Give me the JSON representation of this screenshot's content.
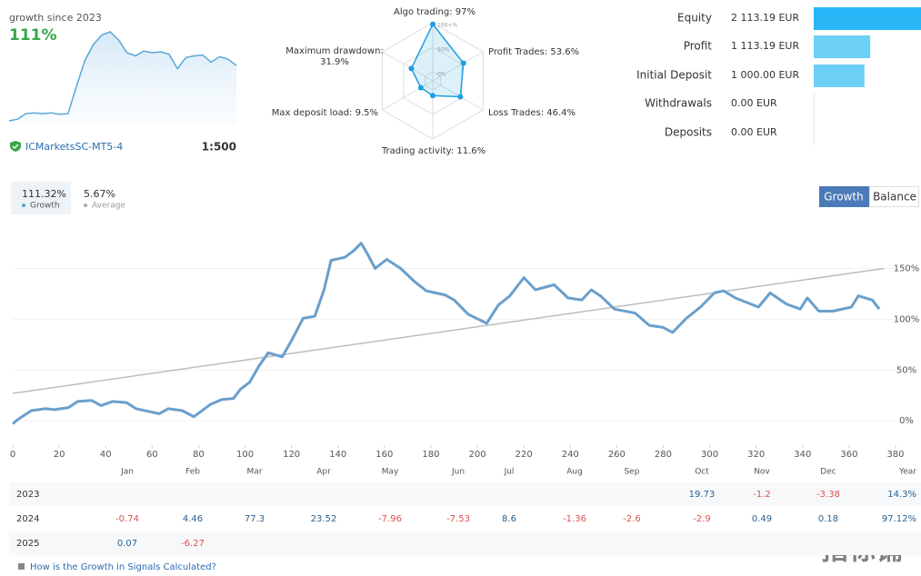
{
  "header": {
    "title": "growth since 2023",
    "growth": "111%",
    "server": "ICMarketsSC-MT5-4",
    "leverage": "1:500"
  },
  "chart_data": [
    {
      "type": "sparkline",
      "color": "#5aa7d6",
      "values": [
        -3,
        -1,
        6,
        7,
        6,
        7,
        5,
        6,
        40,
        72,
        92,
        104,
        108,
        98,
        82,
        78,
        84,
        82,
        83,
        80,
        62,
        76,
        78,
        79,
        70,
        77,
        74,
        66
      ]
    },
    {
      "type": "radar",
      "color": "#1e9fe0",
      "categories": [
        "Algo trading: 97%",
        "Profit Trades: 53.6%",
        "Loss Trades: 46.4%",
        "Trading activity: 11.6%",
        "Max deposit load: 9.5%",
        "Maximum drawdown: 31.9%"
      ],
      "values": [
        97,
        53.6,
        46.4,
        11.6,
        9.5,
        31.9
      ],
      "yticks": [
        {
          "value": 0,
          "label": "0%"
        },
        {
          "value": 50,
          "label": "50%"
        },
        {
          "value": 100,
          "label": "100+%"
        }
      ]
    },
    {
      "type": "hbar",
      "categories": [
        "Equity",
        "Profit",
        "Initial Deposit",
        "Withdrawals",
        "Deposits"
      ],
      "values": [
        2113.19,
        1113.19,
        1000,
        0,
        0
      ],
      "value_labels": [
        "2 113.19 EUR",
        "1 113.19 EUR",
        "1 000.00 EUR",
        "0.00 EUR",
        "0.00 EUR"
      ],
      "colors": [
        "#29b6f6",
        "#6ccff6",
        "#6ccff6",
        "#6ccff6",
        "#6ccff6"
      ]
    },
    {
      "type": "line",
      "x": [
        0,
        2,
        8,
        14,
        18,
        24,
        28,
        34,
        38,
        43,
        49,
        53,
        63,
        67,
        73,
        78,
        85,
        90,
        95,
        98,
        102,
        106,
        110,
        116,
        120,
        125,
        130,
        134,
        137,
        143,
        147,
        150,
        153,
        156,
        161,
        167,
        173,
        178,
        186,
        190,
        196,
        204,
        209,
        214,
        220,
        225,
        233,
        239,
        245,
        249,
        253,
        259,
        268,
        274,
        280,
        284,
        290,
        296,
        302,
        306,
        311,
        321,
        326,
        333,
        339,
        342,
        347,
        353,
        361,
        364,
        370,
        373
      ],
      "series": [
        {
          "color": "#6a9fcc",
          "values": [
            -3,
            1,
            10,
            12,
            11,
            13,
            19,
            20,
            15,
            19,
            18,
            12,
            7,
            12,
            10,
            4,
            16,
            21,
            22,
            31,
            38,
            54,
            67,
            63,
            79,
            101,
            103,
            129,
            158,
            161,
            168,
            175,
            163,
            150,
            159,
            150,
            137,
            128,
            124,
            119,
            105,
            96,
            114,
            123,
            141,
            129,
            134,
            121,
            119,
            129,
            123,
            110,
            106,
            94,
            92,
            87,
            101,
            112,
            126,
            128,
            121,
            112,
            126,
            115,
            110,
            121,
            108,
            108,
            112,
            123,
            119,
            110
          ]
        },
        {
          "color": "#bdbdbd",
          "x": [
            0,
            375
          ],
          "values": [
            27,
            150
          ]
        }
      ],
      "xlim": [
        0,
        380
      ],
      "xticks": [
        0,
        20,
        40,
        60,
        80,
        100,
        120,
        140,
        160,
        180,
        200,
        220,
        240,
        260,
        280,
        300,
        320,
        340,
        360,
        380
      ],
      "ylim": [
        -24,
        180
      ],
      "yticks": [
        {
          "value": 0,
          "label": "0%"
        },
        {
          "value": 50,
          "label": "50%"
        },
        {
          "value": 100,
          "label": "100%"
        },
        {
          "value": 150,
          "label": "150%"
        }
      ]
    }
  ],
  "stats": {
    "growth": {
      "value": "111.32%",
      "label": "Growth"
    },
    "average": {
      "value": "5.67%",
      "label": "Average"
    }
  },
  "buttons": [
    "Growth",
    "Balance"
  ],
  "table": {
    "columns": [
      "Jan",
      "Feb",
      "Mar",
      "Apr",
      "May",
      "Jun",
      "Jul",
      "Aug",
      "Sep",
      "Oct",
      "Nov",
      "Dec",
      "Year"
    ],
    "rows": [
      [
        "2023",
        null,
        null,
        null,
        null,
        null,
        null,
        null,
        null,
        null,
        "19.73",
        "-1.2",
        "-3.38",
        "14.3%"
      ],
      [
        "2024",
        "-0.74",
        "4.46",
        "77.3",
        "23.52",
        "-7.96",
        "-7.53",
        "8.6",
        "-1.36",
        "-2.6",
        "-2.9",
        "0.49",
        "0.18",
        "97.12%"
      ],
      [
        "2025",
        "0.07",
        "-6.27",
        null,
        null,
        null,
        null,
        null,
        null,
        null,
        null,
        null,
        null,
        null
      ]
    ]
  },
  "footer": {
    "link": "How is the Growth in Signals Calculated?"
  },
  "watermark": "指标铺"
}
